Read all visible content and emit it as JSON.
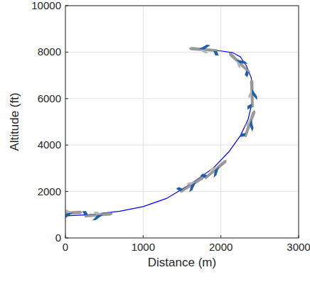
{
  "chart_data": {
    "type": "line",
    "xlabel": "Distance (m)",
    "ylabel": "Altitude (ft)",
    "xlim": [
      0,
      3000
    ],
    "ylim": [
      0,
      10000
    ],
    "xticks": [
      0,
      1000,
      2000,
      3000
    ],
    "yticks": [
      0,
      2000,
      4000,
      6000,
      8000,
      10000
    ],
    "grid": true,
    "series": [
      {
        "type": "line",
        "color": "#0000ff",
        "line_style": "solid",
        "x": [
          0,
          300,
          700,
          1000,
          1300,
          1600,
          1900,
          2100,
          2250,
          2350,
          2400,
          2410,
          2390,
          2330,
          2250,
          2150,
          2000,
          1800
        ],
        "values": [
          950,
          1000,
          1150,
          1350,
          1700,
          2300,
          3000,
          3700,
          4400,
          5100,
          5800,
          6300,
          6900,
          7400,
          7800,
          7980,
          8050,
          8100
        ]
      },
      {
        "type": "scatter",
        "marker": "airplane",
        "color": "#1f5fa8",
        "x": [
          60,
          450,
          1650,
          1950,
          2380,
          2400,
          2220,
          1750
        ],
        "values": [
          1080,
          1000,
          2350,
          3000,
          5000,
          6300,
          7600,
          8120
        ]
      }
    ]
  }
}
